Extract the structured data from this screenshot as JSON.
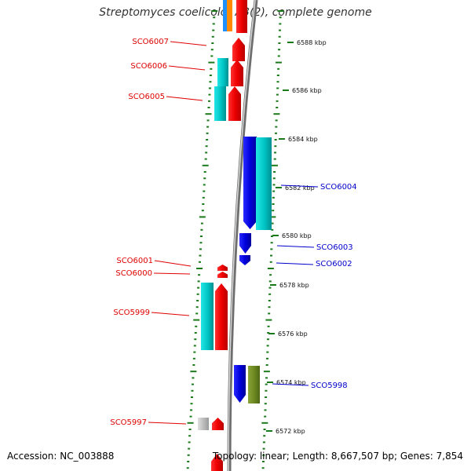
{
  "title": "Streptomyces coelicolor A3(2), complete genome",
  "footer": {
    "accession": "Accession: NC_003888",
    "summary": "Topology: linear; Length: 8,667,507 bp; Genes: 7,854"
  },
  "colors": {
    "forward_label": "#e00000",
    "reverse_label": "#0000cc",
    "tick": "#1a7a1a",
    "backbone": "#9a9a9a"
  },
  "scale_labels": [
    "6588 kbp",
    "6586 kbp",
    "6584 kbp",
    "6582 kbp",
    "6580 kbp",
    "6578 kbp",
    "6576 kbp",
    "6574 kbp",
    "6572 kbp"
  ],
  "genes": [
    {
      "label": "SCO6007",
      "strand": "forward"
    },
    {
      "label": "SCO6006",
      "strand": "forward"
    },
    {
      "label": "SCO6005",
      "strand": "forward"
    },
    {
      "label": "SCO6004",
      "strand": "reverse"
    },
    {
      "label": "SCO6003",
      "strand": "reverse"
    },
    {
      "label": "SCO6002",
      "strand": "reverse"
    },
    {
      "label": "SCO6001",
      "strand": "forward"
    },
    {
      "label": "SCO6000",
      "strand": "forward"
    },
    {
      "label": "SCO5999",
      "strand": "forward"
    },
    {
      "label": "SCO5998",
      "strand": "reverse"
    },
    {
      "label": "SCO5997",
      "strand": "forward"
    }
  ]
}
